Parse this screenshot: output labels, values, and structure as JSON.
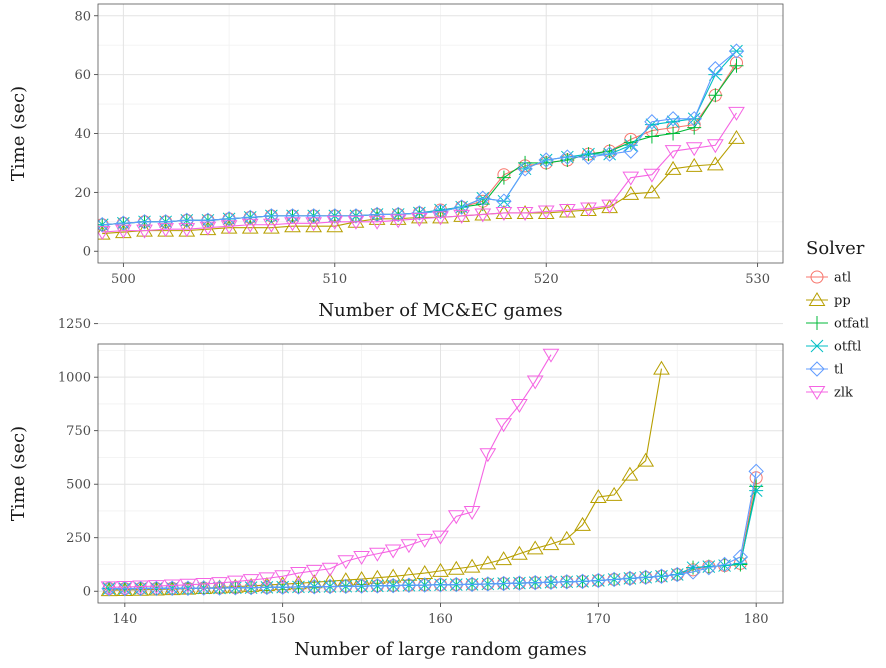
{
  "legend": {
    "title": "Solver",
    "placement": "right",
    "items": [
      {
        "name": "atl",
        "color": "#F8766D",
        "marker": "circle"
      },
      {
        "name": "pp",
        "color": "#B79F00",
        "marker": "triangle-up"
      },
      {
        "name": "otfatl",
        "color": "#00BA38",
        "marker": "plus"
      },
      {
        "name": "otftl",
        "color": "#00BFC4",
        "marker": "star-x"
      },
      {
        "name": "tl",
        "color": "#619CFF",
        "marker": "diamond"
      },
      {
        "name": "zlk",
        "color": "#F564E3",
        "marker": "triangle-down"
      }
    ]
  },
  "chart_data": [
    {
      "type": "line",
      "title": "",
      "xlabel": "Number of MC&EC games",
      "ylabel": "Time (sec)",
      "xlim": [
        498.8,
        531.2
      ],
      "ylim": [
        -4,
        84
      ],
      "xticks": [
        500,
        510,
        520,
        530
      ],
      "yticks": [
        0,
        20,
        40,
        60,
        80
      ],
      "grid": true,
      "x": [
        499,
        500,
        501,
        502,
        503,
        504,
        505,
        506,
        507,
        508,
        509,
        510,
        511,
        512,
        513,
        514,
        515,
        516,
        517,
        518,
        519,
        520,
        521,
        522,
        523,
        524,
        525,
        526,
        527,
        528,
        529
      ],
      "series": [
        {
          "name": "atl",
          "values": [
            9,
            9.5,
            10,
            10,
            10.5,
            10.5,
            11,
            11.5,
            12,
            12,
            12,
            12,
            12,
            12.5,
            12.5,
            13,
            14,
            15,
            17,
            26,
            29,
            30,
            31,
            33,
            34,
            38,
            41,
            42,
            43,
            53,
            64
          ]
        },
        {
          "name": "pp",
          "values": [
            6,
            6.5,
            7,
            7,
            7,
            7.5,
            8,
            8,
            8,
            8.5,
            8.5,
            8.5,
            10,
            11,
            11,
            11.5,
            11.5,
            12,
            12.5,
            13,
            13,
            13,
            13.5,
            14,
            15,
            19.5,
            20,
            28,
            29,
            29.5,
            38.5
          ]
        },
        {
          "name": "otfatl",
          "values": [
            9,
            9.5,
            10,
            10,
            10.5,
            10.5,
            11,
            11.5,
            12,
            12,
            12,
            12,
            12,
            12.5,
            12.5,
            13,
            13.5,
            15,
            16,
            25,
            30,
            30,
            31,
            33,
            34,
            37,
            39,
            40,
            42,
            53,
            63
          ]
        },
        {
          "name": "otftl",
          "values": [
            9,
            9.5,
            10,
            10,
            10.5,
            10.5,
            11,
            11.5,
            12,
            12,
            12,
            12,
            12,
            12.5,
            12.5,
            13,
            14,
            15,
            18,
            17,
            28,
            31,
            32,
            33,
            33,
            36,
            43,
            44,
            45,
            60,
            68
          ]
        },
        {
          "name": "tl",
          "values": [
            9,
            9.5,
            10,
            10,
            10.5,
            10.5,
            11,
            11.5,
            12,
            12,
            12,
            12,
            12,
            12.5,
            12.5,
            13,
            13.5,
            15,
            18,
            17,
            28,
            31,
            32,
            32,
            33,
            34,
            44,
            45,
            45,
            62,
            68
          ]
        },
        {
          "name": "zlk",
          "values": [
            6.5,
            7,
            7,
            7.5,
            7.5,
            8,
            8.5,
            9,
            9,
            9.5,
            9.5,
            10,
            10,
            10,
            10.5,
            11,
            11.5,
            12,
            12.5,
            13,
            13,
            13.5,
            14,
            14.5,
            15.5,
            25,
            26,
            34,
            35,
            36,
            47
          ]
        }
      ]
    },
    {
      "type": "line",
      "title": "",
      "xlabel": "Number of large random games",
      "ylabel": "Time (sec)",
      "xlim": [
        138.3,
        181.7
      ],
      "ylim": [
        -55,
        1155
      ],
      "xticks": [
        140,
        150,
        160,
        170,
        180
      ],
      "yticks": [
        0,
        250,
        500,
        750,
        1000,
        1250
      ],
      "yticklabels": [
        "0",
        "250",
        "500",
        "750",
        "1000",
        "1250"
      ],
      "grid": true,
      "series": [
        {
          "name": "atl",
          "x": [
            139,
            140,
            141,
            142,
            143,
            144,
            145,
            146,
            147,
            148,
            149,
            150,
            151,
            152,
            153,
            154,
            155,
            156,
            157,
            158,
            159,
            160,
            161,
            162,
            163,
            164,
            165,
            166,
            167,
            168,
            169,
            170,
            171,
            172,
            173,
            174,
            175,
            176,
            177,
            178,
            179,
            180
          ],
          "values": [
            12,
            12,
            13,
            13,
            14,
            14,
            15,
            15,
            16,
            17,
            18,
            19,
            20,
            21,
            22,
            23,
            24,
            25,
            26,
            28,
            29,
            30,
            31,
            32,
            34,
            36,
            38,
            40,
            42,
            44,
            46,
            50,
            55,
            60,
            65,
            70,
            78,
            100,
            115,
            120,
            130,
            530
          ]
        },
        {
          "name": "pp",
          "x": [
            139,
            140,
            141,
            142,
            143,
            144,
            145,
            146,
            147,
            148,
            149,
            150,
            151,
            152,
            153,
            154,
            155,
            156,
            157,
            158,
            159,
            160,
            161,
            162,
            163,
            164,
            165,
            166,
            167,
            168,
            169,
            170,
            171,
            172,
            173,
            174
          ],
          "values": [
            5,
            6,
            7,
            8,
            10,
            12,
            15,
            18,
            21,
            25,
            29,
            33,
            37,
            42,
            47,
            52,
            57,
            63,
            69,
            77,
            85,
            95,
            105,
            115,
            130,
            150,
            175,
            200,
            220,
            245,
            310,
            440,
            450,
            545,
            610,
            1040
          ]
        },
        {
          "name": "otfatl",
          "x": [
            139,
            140,
            141,
            142,
            143,
            144,
            145,
            146,
            147,
            148,
            149,
            150,
            151,
            152,
            153,
            154,
            155,
            156,
            157,
            158,
            159,
            160,
            161,
            162,
            163,
            164,
            165,
            166,
            167,
            168,
            169,
            170,
            171,
            172,
            173,
            174,
            175,
            176,
            177,
            178,
            179,
            180
          ],
          "values": [
            12,
            12,
            13,
            13,
            14,
            14,
            15,
            15,
            16,
            17,
            18,
            19,
            20,
            21,
            22,
            23,
            24,
            25,
            26,
            28,
            29,
            30,
            31,
            32,
            34,
            36,
            38,
            40,
            42,
            44,
            46,
            50,
            55,
            60,
            65,
            70,
            78,
            110,
            115,
            120,
            125,
            490
          ]
        },
        {
          "name": "otftl",
          "x": [
            139,
            140,
            141,
            142,
            143,
            144,
            145,
            146,
            147,
            148,
            149,
            150,
            151,
            152,
            153,
            154,
            155,
            156,
            157,
            158,
            159,
            160,
            161,
            162,
            163,
            164,
            165,
            166,
            167,
            168,
            169,
            170,
            171,
            172,
            173,
            174,
            175,
            176,
            177,
            178,
            179,
            180
          ],
          "values": [
            12,
            12,
            13,
            13,
            14,
            14,
            15,
            15,
            16,
            17,
            18,
            19,
            20,
            21,
            22,
            23,
            24,
            25,
            26,
            28,
            29,
            30,
            31,
            32,
            34,
            36,
            38,
            40,
            42,
            44,
            46,
            50,
            55,
            60,
            65,
            70,
            78,
            110,
            115,
            120,
            130,
            470
          ]
        },
        {
          "name": "tl",
          "x": [
            139,
            140,
            141,
            142,
            143,
            144,
            145,
            146,
            147,
            148,
            149,
            150,
            151,
            152,
            153,
            154,
            155,
            156,
            157,
            158,
            159,
            160,
            161,
            162,
            163,
            164,
            165,
            166,
            167,
            168,
            169,
            170,
            171,
            172,
            173,
            174,
            175,
            176,
            177,
            178,
            179,
            180
          ],
          "values": [
            12,
            12,
            13,
            13,
            14,
            14,
            15,
            15,
            16,
            17,
            18,
            19,
            20,
            21,
            22,
            23,
            24,
            25,
            26,
            28,
            29,
            30,
            31,
            32,
            34,
            36,
            38,
            40,
            42,
            44,
            46,
            50,
            55,
            60,
            65,
            70,
            78,
            90,
            110,
            125,
            160,
            560
          ]
        },
        {
          "name": "zlk",
          "x": [
            139,
            140,
            141,
            142,
            143,
            144,
            145,
            146,
            147,
            148,
            149,
            150,
            151,
            152,
            153,
            154,
            155,
            156,
            157,
            158,
            159,
            160,
            161,
            162,
            163,
            164,
            165,
            166,
            167
          ],
          "values": [
            18,
            20,
            22,
            24,
            27,
            30,
            34,
            38,
            45,
            52,
            60,
            70,
            85,
            95,
            105,
            140,
            160,
            175,
            190,
            215,
            240,
            255,
            350,
            370,
            640,
            780,
            870,
            980,
            1105
          ]
        }
      ]
    }
  ]
}
